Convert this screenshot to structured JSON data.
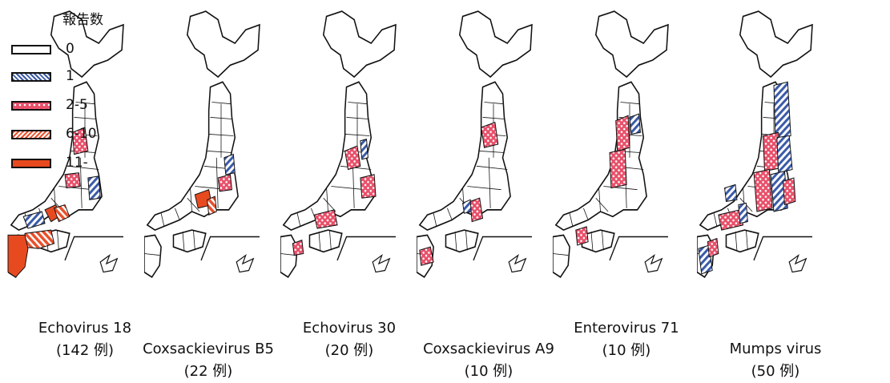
{
  "legend": {
    "title": "報告数",
    "items": [
      {
        "label": "0",
        "pattern": "none"
      },
      {
        "label": "1",
        "pattern": "blue-hatch"
      },
      {
        "label": "2-5",
        "pattern": "pink-dots"
      },
      {
        "label": "6-10",
        "pattern": "orange-hatch"
      },
      {
        "label": "11-",
        "pattern": "red-solid"
      }
    ]
  },
  "maps": [
    {
      "virus": "Echovirus 18",
      "cases": "(142 例)"
    },
    {
      "virus": "Coxsackievirus B5",
      "cases": "(22 例)"
    },
    {
      "virus": "Echovirus 30",
      "cases": "(20 例)"
    },
    {
      "virus": "Coxsackievirus A9",
      "cases": "(10 例)"
    },
    {
      "virus": "Enterovirus 71",
      "cases": "(10 例)"
    },
    {
      "virus": "Mumps virus",
      "cases": "(50 例)"
    }
  ],
  "colors": {
    "outline": "#111111",
    "blue": "#3a5aa8",
    "pink": "#e8506a",
    "orange": "#e8502a",
    "red": "#e84a20"
  }
}
